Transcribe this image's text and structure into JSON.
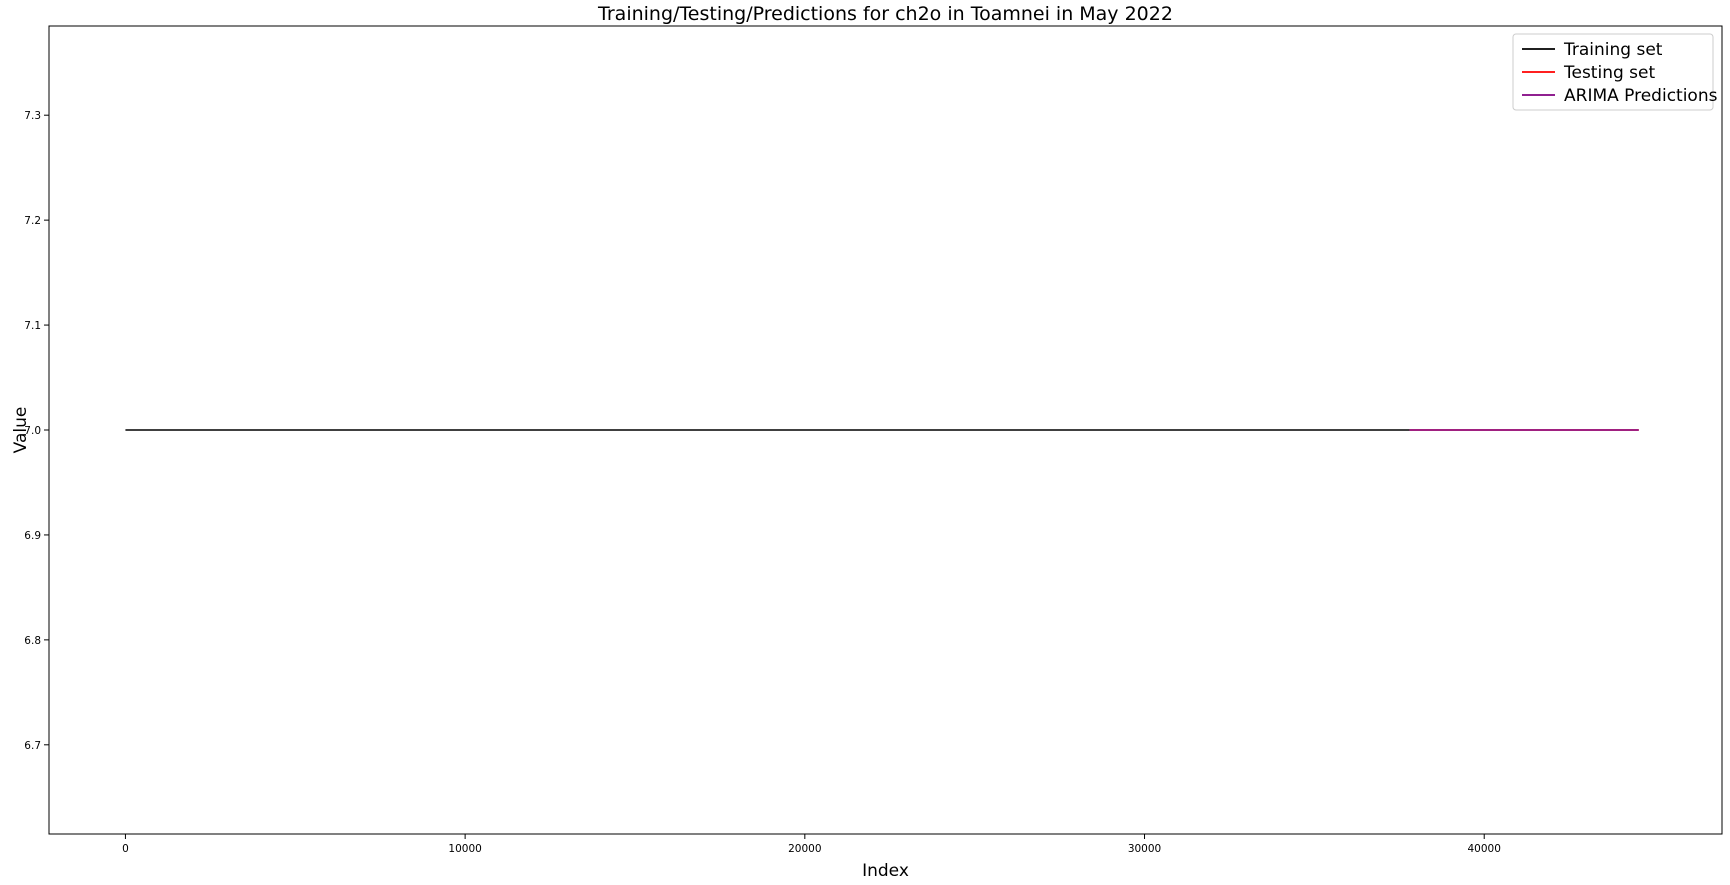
{
  "chart_data": {
    "type": "line",
    "title": "Training/Testing/Predictions for ch2o in Toamnei in May 2022",
    "xlabel": "Index",
    "ylabel": "Value",
    "xlim": [
      -2250,
      47000
    ],
    "ylim": [
      6.615,
      7.385
    ],
    "xticks": [
      0,
      10000,
      20000,
      30000,
      40000
    ],
    "xtick_labels": [
      "0",
      "10000",
      "20000",
      "30000",
      "40000"
    ],
    "yticks": [
      6.7,
      6.8,
      6.9,
      7.0,
      7.1,
      7.2,
      7.3
    ],
    "ytick_labels": [
      "6.7",
      "6.8",
      "6.9",
      "7.0",
      "7.1",
      "7.2",
      "7.3"
    ],
    "grid": false,
    "legend_position": "top-right",
    "series": [
      {
        "name": "Training set",
        "color": "#000000",
        "x": [
          0,
          37800
        ],
        "y": [
          7.0,
          7.0
        ]
      },
      {
        "name": "Testing set",
        "color": "#ff0000",
        "x": [
          37800,
          44550
        ],
        "y": [
          7.0,
          7.0
        ]
      },
      {
        "name": "ARIMA Predictions",
        "color": "#800080",
        "x": [
          37800,
          44550
        ],
        "y": [
          7.0,
          7.0
        ]
      }
    ]
  }
}
